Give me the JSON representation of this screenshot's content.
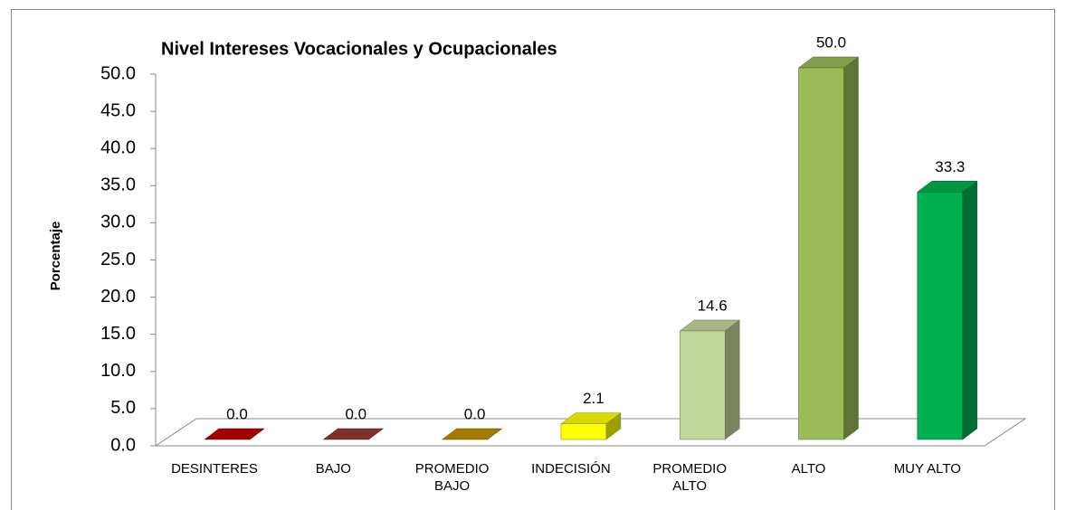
{
  "chart_data": {
    "type": "bar3d",
    "title": "Nivel Intereses Vocacionales y Ocupacionales",
    "y_label": "Porcentaje",
    "categories": [
      "DESINTERES",
      "BAJO",
      "PROMEDIO BAJO",
      "INDECISIÓN",
      "PROMEDIO ALTO",
      "ALTO",
      "MUY ALTO"
    ],
    "values": [
      0.0,
      0.0,
      0.0,
      2.1,
      14.6,
      50.0,
      33.3
    ],
    "value_labels": [
      "0.0",
      "0.0",
      "0.0",
      "2.1",
      "14.6",
      "50.0",
      "33.3"
    ],
    "colors": [
      "#c00000",
      "#953735",
      "#bf9000",
      "#ffff00",
      "#c4d79b",
      "#9bbb59",
      "#00b050"
    ],
    "ylim": [
      0,
      50
    ],
    "yticks": [
      {
        "value": 0,
        "label": "0.0"
      },
      {
        "value": 5,
        "label": "5.0"
      },
      {
        "value": 10,
        "label": "10.0"
      },
      {
        "value": 15,
        "label": "15.0"
      },
      {
        "value": 20,
        "label": "20.0"
      },
      {
        "value": 25,
        "label": "25.0"
      },
      {
        "value": 30,
        "label": "30.0"
      },
      {
        "value": 35,
        "label": "35.0"
      },
      {
        "value": 40,
        "label": "40.0"
      },
      {
        "value": 45,
        "label": "45.0"
      },
      {
        "value": 50,
        "label": "50.0"
      }
    ],
    "grid": false
  }
}
